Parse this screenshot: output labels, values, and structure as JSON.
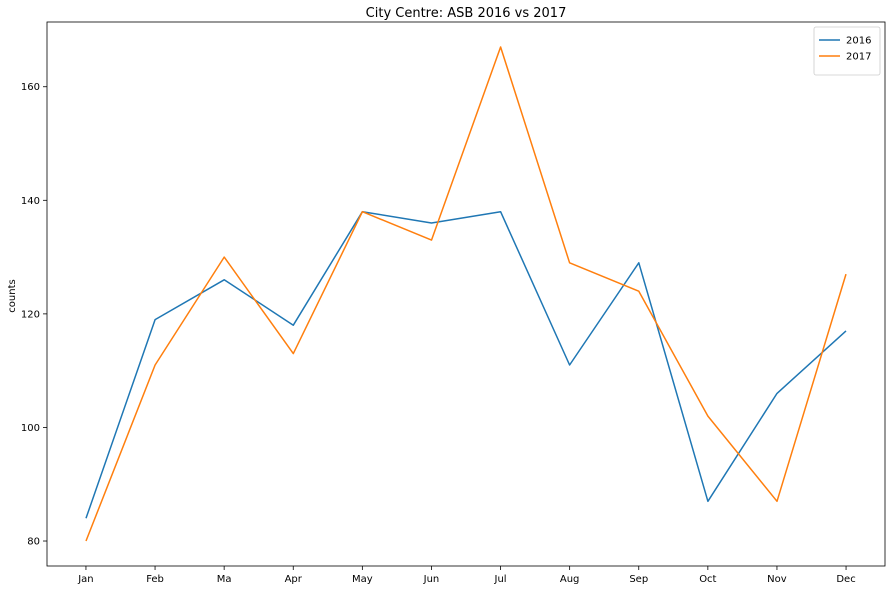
{
  "chart_data": {
    "type": "line",
    "title": "City Centre: ASB 2016 vs 2017",
    "xlabel": "",
    "ylabel": "counts",
    "categories": [
      "Jan",
      "Feb",
      "Ma",
      "Apr",
      "May",
      "Jun",
      "Jul",
      "Aug",
      "Sep",
      "Oct",
      "Nov",
      "Dec"
    ],
    "yticks": [
      80,
      100,
      120,
      140,
      160
    ],
    "ylim": [
      75.6,
      171.4
    ],
    "grid": false,
    "legend_position": "top-right",
    "series": [
      {
        "name": "2016",
        "color": "#1f77b4",
        "values": [
          84,
          119,
          126,
          118,
          138,
          136,
          138,
          111,
          129,
          87,
          106,
          117
        ]
      },
      {
        "name": "2017",
        "color": "#ff7f0e",
        "values": [
          80,
          111,
          130,
          113,
          138,
          133,
          167,
          129,
          124,
          102,
          87,
          127
        ]
      }
    ]
  }
}
